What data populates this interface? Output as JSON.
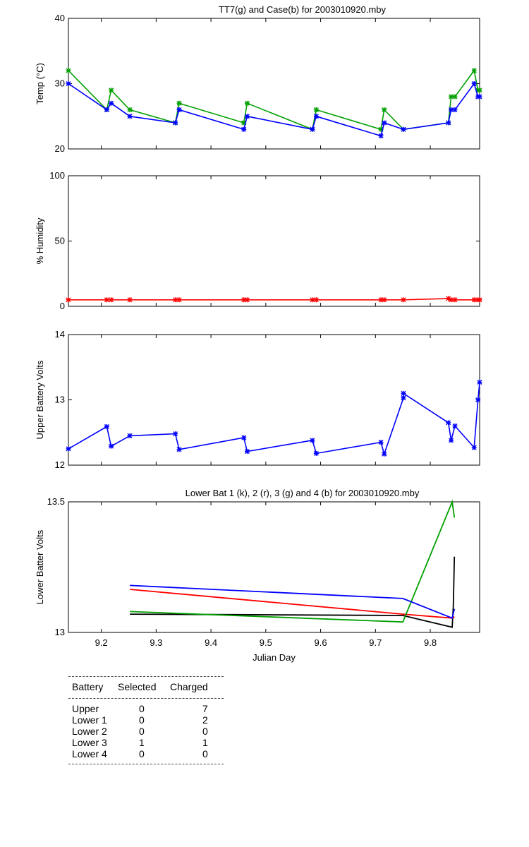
{
  "chart_data": [
    {
      "type": "line",
      "title": "TT7(g) and Case(b) for 2003010920.mby",
      "xlabel": "",
      "ylabel": "Temp  (°C)",
      "xlim": [
        9.14,
        9.89
      ],
      "ylim": [
        20,
        40
      ],
      "yticks": [
        20,
        30,
        40
      ],
      "grid": false,
      "series": [
        {
          "name": "TT7",
          "color": "#00a000",
          "marker": true,
          "x": [
            9.14,
            9.21,
            9.218,
            9.252,
            9.335,
            9.342,
            9.46,
            9.466,
            9.585,
            9.592,
            9.71,
            9.716,
            9.751,
            9.833,
            9.838,
            9.845,
            9.88,
            9.887,
            9.89
          ],
          "y": [
            32,
            26,
            29,
            26,
            24,
            27,
            24,
            27,
            23,
            26,
            23,
            26,
            23,
            24,
            28,
            28,
            32,
            29,
            29
          ]
        },
        {
          "name": "Case",
          "color": "#0000ff",
          "marker": true,
          "x": [
            9.14,
            9.21,
            9.218,
            9.252,
            9.335,
            9.342,
            9.46,
            9.466,
            9.585,
            9.592,
            9.71,
            9.716,
            9.751,
            9.833,
            9.838,
            9.845,
            9.88,
            9.887,
            9.89
          ],
          "y": [
            30,
            26,
            27,
            25,
            24,
            26,
            23,
            25,
            23,
            25,
            22,
            24,
            23,
            24,
            26,
            26,
            30,
            28,
            28
          ]
        }
      ]
    },
    {
      "type": "line",
      "title": "",
      "xlabel": "",
      "ylabel": "% Humidity",
      "xlim": [
        9.14,
        9.89
      ],
      "ylim": [
        0,
        100
      ],
      "yticks": [
        0,
        50,
        100
      ],
      "grid": false,
      "series": [
        {
          "name": "",
          "color": "#ff0000",
          "marker": true,
          "x": [
            9.14,
            9.21,
            9.218,
            9.252,
            9.335,
            9.342,
            9.46,
            9.466,
            9.585,
            9.592,
            9.71,
            9.716,
            9.751,
            9.833,
            9.838,
            9.845,
            9.88,
            9.887,
            9.89
          ],
          "y": [
            5,
            5,
            5,
            5,
            5,
            5,
            5,
            5,
            5,
            5,
            5,
            5,
            5,
            6,
            5,
            5,
            5,
            5,
            5
          ]
        }
      ]
    },
    {
      "type": "line",
      "title": "",
      "xlabel": "",
      "ylabel": "Upper Battery Volts",
      "xlim": [
        9.14,
        9.89
      ],
      "ylim": [
        12,
        14
      ],
      "yticks": [
        12,
        13,
        14
      ],
      "grid": false,
      "series": [
        {
          "name": "",
          "color": "#0000ff",
          "marker": true,
          "x": [
            9.14,
            9.21,
            9.218,
            9.252,
            9.335,
            9.342,
            9.46,
            9.466,
            9.585,
            9.592,
            9.71,
            9.716,
            9.751,
            9.751,
            9.833,
            9.838,
            9.845,
            9.88,
            9.887,
            9.89
          ],
          "y": [
            12.25,
            12.59,
            12.29,
            12.45,
            12.48,
            12.24,
            12.42,
            12.21,
            12.38,
            12.18,
            12.35,
            12.17,
            13.03,
            13.1,
            12.65,
            12.38,
            12.6,
            12.27,
            13.0,
            13.27
          ]
        }
      ]
    },
    {
      "type": "line",
      "title": "Lower Bat 1 (k), 2 (r), 3 (g) and 4 (b) for 2003010920.mby",
      "xlabel": "Julian Day",
      "ylabel": "Lower Batter Volts",
      "xlim": [
        9.14,
        9.89
      ],
      "ylim": [
        13,
        13.5
      ],
      "yticks": [
        13,
        13.5
      ],
      "xticks": [
        9.2,
        9.3,
        9.4,
        9.5,
        9.6,
        9.7,
        9.8
      ],
      "grid": false,
      "series": [
        {
          "name": "1",
          "color": "#000000",
          "marker": false,
          "x": [
            9.252,
            9.75,
            9.84,
            9.842,
            9.844
          ],
          "y": [
            13.07,
            13.065,
            13.02,
            13.1,
            13.29
          ]
        },
        {
          "name": "2",
          "color": "#ff0000",
          "marker": false,
          "x": [
            9.252,
            9.75,
            9.84,
            9.844
          ],
          "y": [
            13.165,
            13.07,
            13.055,
            13.06
          ]
        },
        {
          "name": "3",
          "color": "#00a000",
          "marker": false,
          "x": [
            9.252,
            9.75,
            9.84,
            9.844
          ],
          "y": [
            13.08,
            13.04,
            13.5,
            13.44
          ]
        },
        {
          "name": "4",
          "color": "#0000ff",
          "marker": false,
          "x": [
            9.252,
            9.75,
            9.84,
            9.844
          ],
          "y": [
            13.18,
            13.13,
            13.055,
            13.09
          ]
        }
      ]
    }
  ],
  "table": {
    "headers": [
      "Battery",
      "Selected",
      "Charged"
    ],
    "rows": [
      [
        "Upper",
        "0",
        "7"
      ],
      [
        "Lower 1",
        "0",
        "2"
      ],
      [
        "Lower 2",
        "0",
        "0"
      ],
      [
        "Lower 3",
        "1",
        "1"
      ],
      [
        "Lower 4",
        "0",
        "0"
      ]
    ]
  }
}
